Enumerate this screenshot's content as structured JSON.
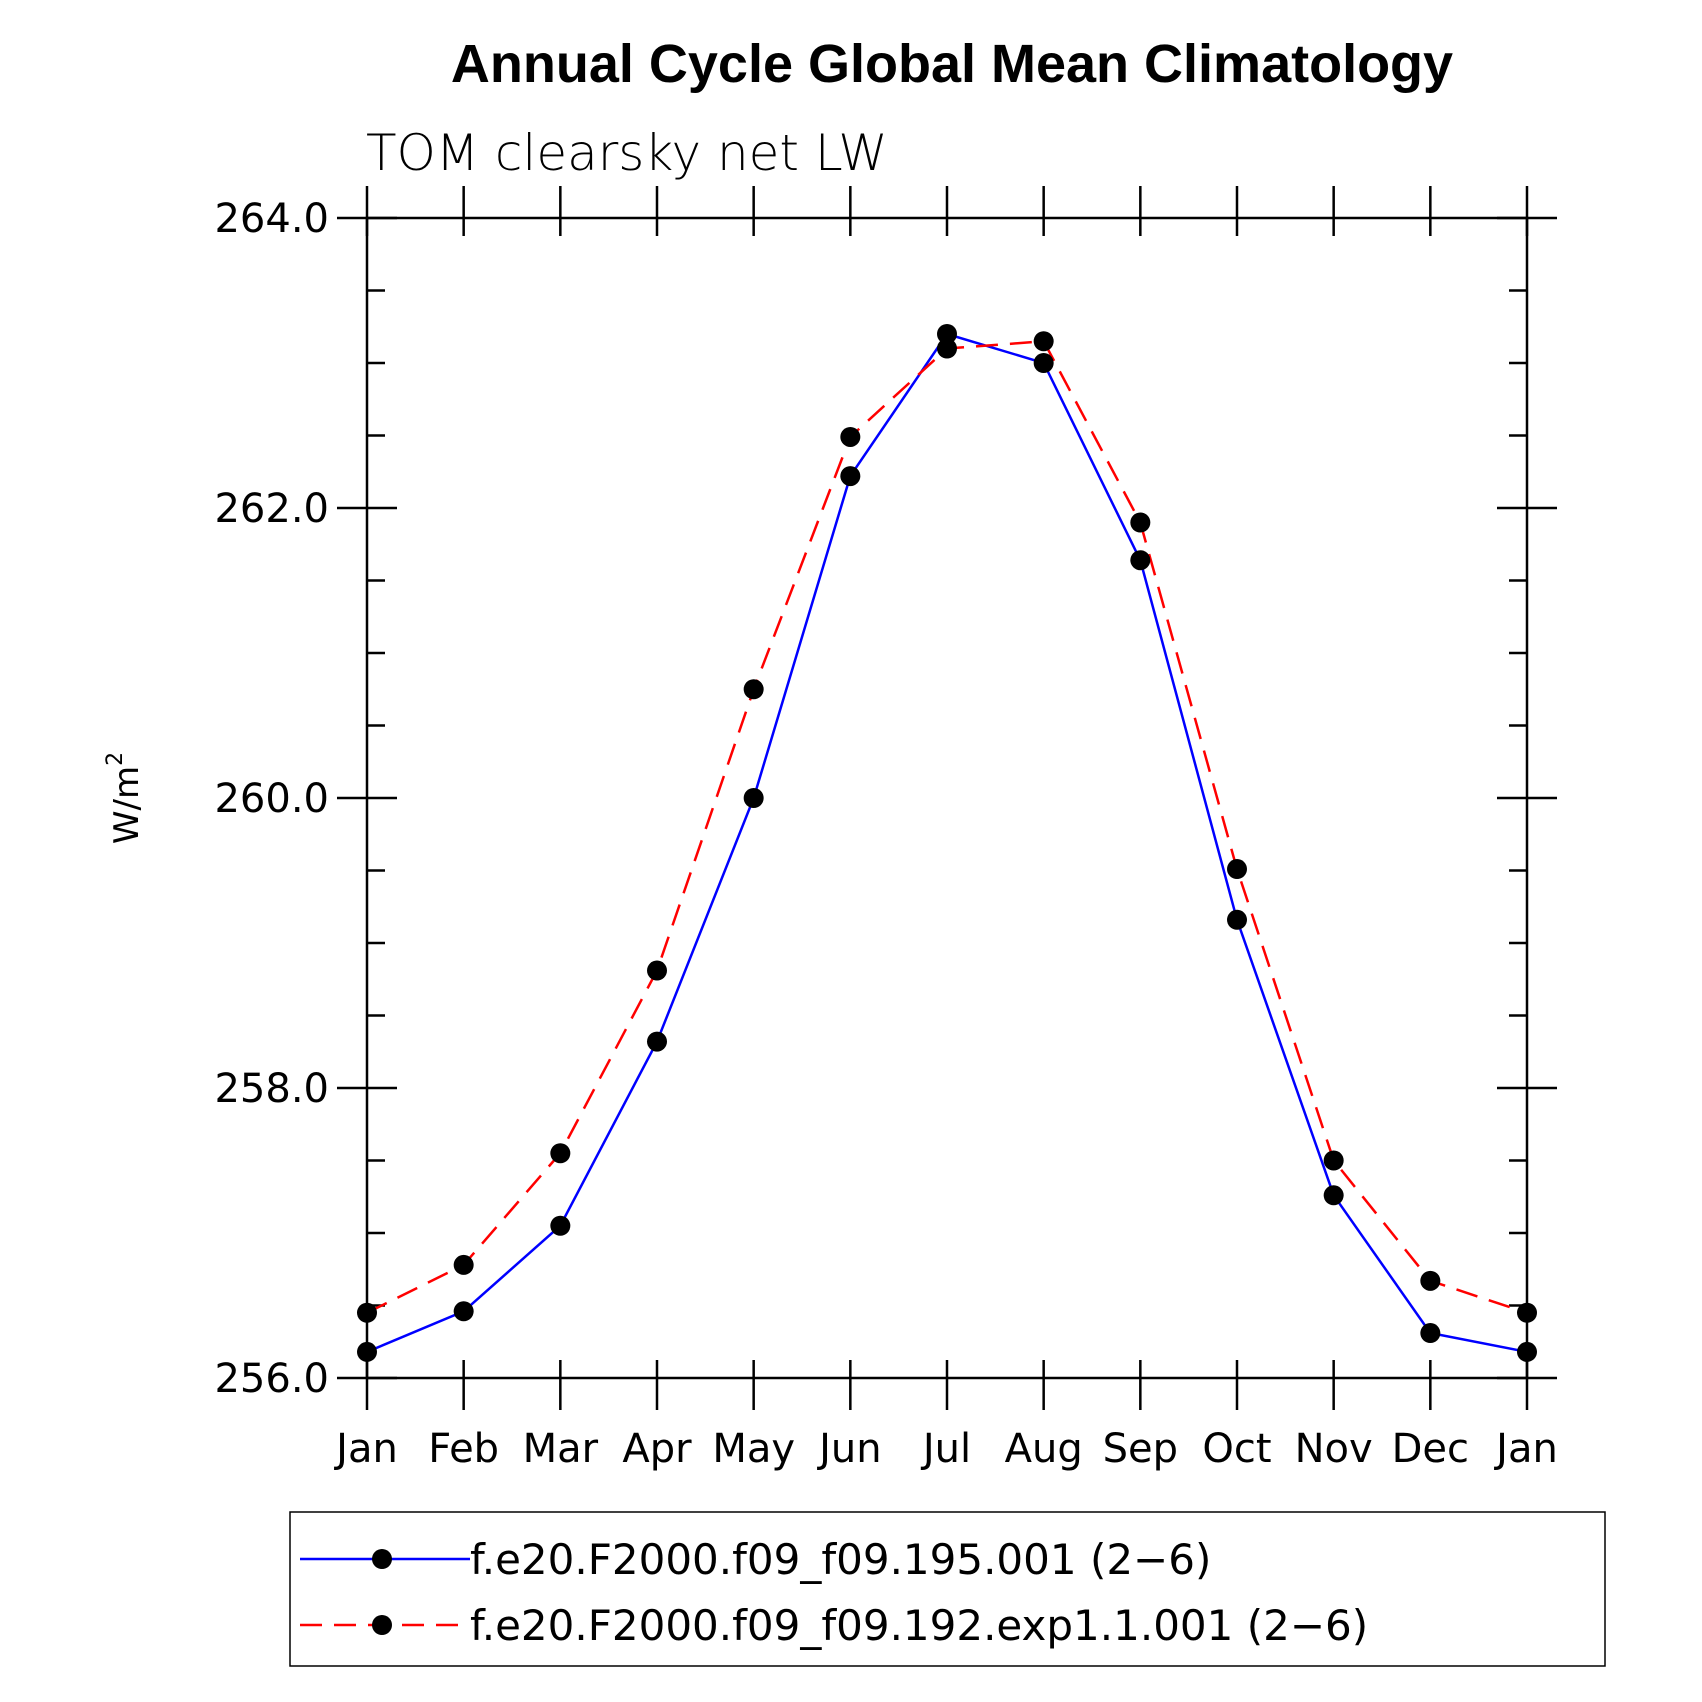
{
  "chart_data": {
    "type": "line",
    "title": "Annual Cycle Global Mean Climatology",
    "subtitle": "TOM clearsky net LW",
    "ylabel": "W/m",
    "ylabel_superscript": "2",
    "xlabel": "",
    "categories": [
      "Jan",
      "Feb",
      "Mar",
      "Apr",
      "May",
      "Jun",
      "Jul",
      "Aug",
      "Sep",
      "Oct",
      "Nov",
      "Dec",
      "Jan"
    ],
    "ylim": [
      256.0,
      264.0
    ],
    "yticks": [
      "256.0",
      "258.0",
      "260.0",
      "262.0",
      "264.0"
    ],
    "grid": false,
    "legend_position": "bottom",
    "series": [
      {
        "name": "f.e20.F2000.f09_f09.195.001 (2−6)",
        "color": "#0000ff",
        "line_style": "solid",
        "marker": "filled-circle",
        "values": [
          256.18,
          256.46,
          257.05,
          258.32,
          260.0,
          262.22,
          263.2,
          263.0,
          261.64,
          259.16,
          257.26,
          256.31,
          256.18
        ]
      },
      {
        "name": "f.e20.F2000.f09_f09.192.exp1.1.001 (2−6)",
        "color": "#ff0000",
        "line_style": "dashed",
        "marker": "filled-circle",
        "values": [
          256.45,
          256.78,
          257.55,
          258.81,
          260.75,
          262.49,
          263.1,
          263.15,
          261.9,
          259.51,
          257.5,
          256.67,
          256.45
        ]
      }
    ]
  }
}
